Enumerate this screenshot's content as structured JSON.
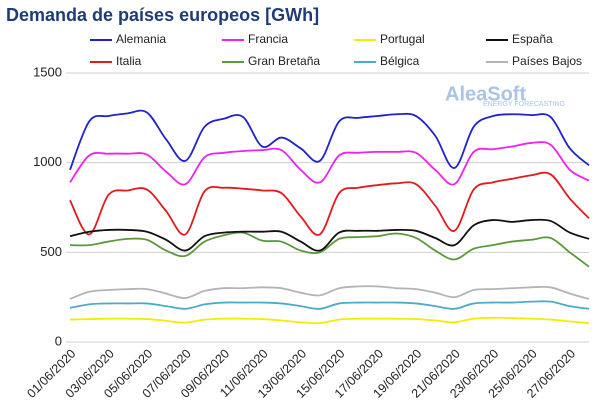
{
  "chart_data": {
    "type": "line",
    "title": "Demanda de países europeos [GWh]",
    "watermark": {
      "name": "AleaSoft",
      "tagline": "ENERGY FORECASTING"
    },
    "categories": [
      "01/06/2020",
      null,
      "03/06/2020",
      null,
      "05/06/2020",
      null,
      "07/06/2020",
      null,
      "09/06/2020",
      null,
      "11/06/2020",
      null,
      "13/06/2020",
      null,
      "15/06/2020",
      null,
      "17/06/2020",
      null,
      "19/06/2020",
      null,
      "21/06/2020",
      null,
      "23/06/2020",
      null,
      "25/06/2020",
      null,
      "27/06/2020",
      null
    ],
    "ylim": [
      0,
      1500
    ],
    "yticks": [
      0,
      500,
      1000,
      1500
    ],
    "grid": true,
    "series": [
      {
        "name": "Alemania",
        "color": "#2222cc",
        "values": [
          960,
          1230,
          1260,
          1275,
          1280,
          1130,
          1010,
          1200,
          1245,
          1255,
          1090,
          1140,
          1080,
          1010,
          1230,
          1250,
          1260,
          1270,
          1260,
          1150,
          970,
          1200,
          1260,
          1270,
          1265,
          1255,
          1080,
          985
        ]
      },
      {
        "name": "Francia",
        "color": "#ee22ee",
        "values": [
          890,
          1040,
          1050,
          1050,
          1045,
          950,
          880,
          1030,
          1055,
          1065,
          1070,
          1070,
          960,
          890,
          1040,
          1055,
          1060,
          1060,
          1055,
          960,
          880,
          1060,
          1075,
          1090,
          1110,
          1100,
          960,
          900
        ]
      },
      {
        "name": "Portugal",
        "color": "#f2ee00",
        "values": [
          125,
          128,
          130,
          130,
          128,
          118,
          108,
          125,
          130,
          130,
          128,
          120,
          110,
          105,
          125,
          130,
          130,
          130,
          128,
          120,
          110,
          130,
          135,
          133,
          130,
          125,
          115,
          105
        ]
      },
      {
        "name": "España",
        "color": "#111111",
        "values": [
          590,
          615,
          625,
          625,
          615,
          570,
          510,
          590,
          610,
          615,
          615,
          615,
          560,
          510,
          610,
          620,
          620,
          625,
          620,
          580,
          540,
          650,
          680,
          670,
          680,
          675,
          610,
          575
        ]
      },
      {
        "name": "Italia",
        "color": "#e31a1c",
        "values": [
          790,
          600,
          820,
          845,
          850,
          730,
          600,
          840,
          860,
          855,
          845,
          830,
          700,
          600,
          830,
          860,
          875,
          885,
          880,
          760,
          620,
          850,
          890,
          910,
          930,
          935,
          800,
          690
        ]
      },
      {
        "name": "Gran Bretaña",
        "color": "#5b9a3c",
        "values": [
          540,
          540,
          560,
          575,
          570,
          510,
          480,
          560,
          595,
          610,
          565,
          560,
          510,
          500,
          575,
          585,
          590,
          605,
          580,
          510,
          460,
          520,
          540,
          560,
          570,
          580,
          500,
          420
        ]
      },
      {
        "name": "Bélgica",
        "color": "#4bacc6",
        "values": [
          190,
          210,
          215,
          215,
          215,
          200,
          185,
          210,
          220,
          220,
          220,
          215,
          200,
          185,
          215,
          220,
          220,
          220,
          215,
          200,
          185,
          215,
          220,
          220,
          225,
          225,
          200,
          185
        ]
      },
      {
        "name": "Países Bajos",
        "color": "#b4b4b4",
        "values": [
          240,
          280,
          290,
          295,
          295,
          270,
          245,
          285,
          300,
          300,
          305,
          300,
          275,
          260,
          300,
          310,
          310,
          300,
          295,
          275,
          250,
          290,
          295,
          300,
          305,
          305,
          270,
          240
        ]
      }
    ]
  }
}
